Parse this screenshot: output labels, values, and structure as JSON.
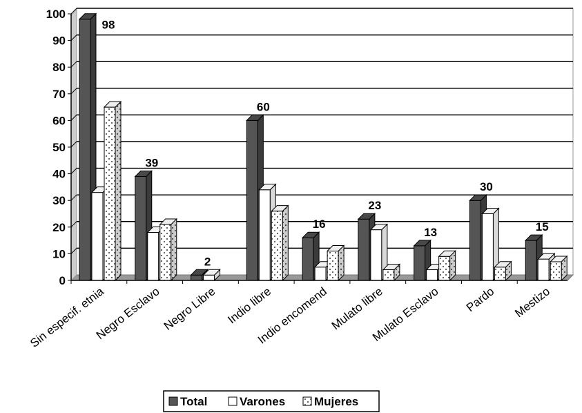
{
  "chart_data": {
    "type": "bar",
    "title": "",
    "xlabel": "",
    "ylabel": "",
    "ylim": [
      0,
      100
    ],
    "yticks": [
      0,
      10,
      20,
      30,
      40,
      50,
      60,
      70,
      80,
      90,
      100
    ],
    "grid": true,
    "legend_position": "bottom",
    "categories": [
      "Sin especif. etnia",
      "Negro Esclavo",
      "Negro Libre",
      "Indio libre",
      "Indio encomend",
      "Mulato libre",
      "Mulato Esclavo",
      "Pardo",
      "Mestizo"
    ],
    "series": [
      {
        "name": "Total",
        "values": [
          98,
          39,
          2,
          60,
          16,
          23,
          13,
          30,
          15
        ],
        "color": "#555555"
      },
      {
        "name": "Varones",
        "values": [
          33,
          18,
          2,
          34,
          5,
          19,
          4,
          25,
          8
        ],
        "color": "#ffffff"
      },
      {
        "name": "Mujeres",
        "values": [
          65,
          21,
          0,
          26,
          11,
          4,
          9,
          5,
          7
        ],
        "color": "#ffffff",
        "pattern": "dotted"
      }
    ],
    "data_labels": {
      "series": "Total",
      "texts": [
        "98",
        "39",
        "2",
        "60",
        "16",
        "23",
        "13",
        "30",
        "15"
      ]
    }
  }
}
